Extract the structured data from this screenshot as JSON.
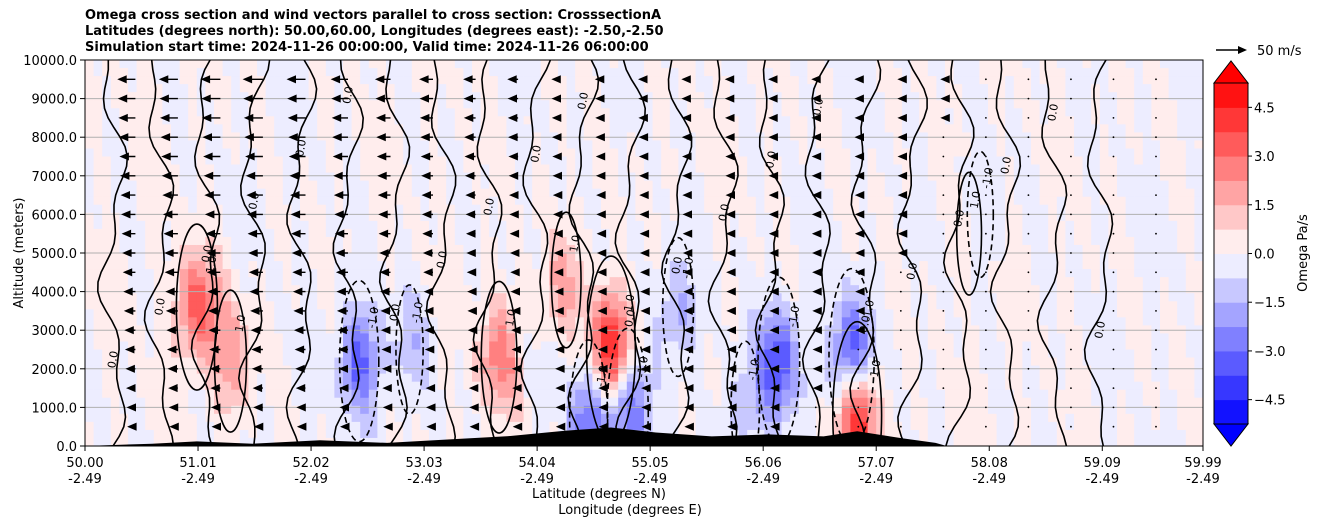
{
  "chart_data": {
    "type": "heatmap",
    "title_lines": [
      "Omega cross section and wind vectors parallel to cross section: CrosssectionA",
      "Latitudes (degrees north): 50.00,60.00, Longitudes (degrees east): -2.50,-2.50",
      "Simulation start time: 2024-11-26 00:00:00, Valid time: 2024-11-26 06:00:00"
    ],
    "xlabel_lines": [
      "Latitude (degrees N)",
      "Longitude (degrees E)"
    ],
    "ylabel": "Altitude (meters)",
    "x_range": [
      50.0,
      59.99
    ],
    "ylim": [
      0,
      10000
    ],
    "x_ticks": [
      {
        "lat": "50.00",
        "lon": "-2.49",
        "value": 50.0
      },
      {
        "lat": "51.01",
        "lon": "-2.49",
        "value": 51.01
      },
      {
        "lat": "52.02",
        "lon": "-2.49",
        "value": 52.02
      },
      {
        "lat": "53.03",
        "lon": "-2.49",
        "value": 53.03
      },
      {
        "lat": "54.04",
        "lon": "-2.49",
        "value": 54.04
      },
      {
        "lat": "55.05",
        "lon": "-2.49",
        "value": 55.05
      },
      {
        "lat": "56.06",
        "lon": "-2.49",
        "value": 56.06
      },
      {
        "lat": "57.07",
        "lon": "-2.49",
        "value": 57.07
      },
      {
        "lat": "58.08",
        "lon": "-2.49",
        "value": 58.08
      },
      {
        "lat": "59.09",
        "lon": "-2.49",
        "value": 59.09
      },
      {
        "lat": "59.99",
        "lon": "-2.49",
        "value": 59.99
      }
    ],
    "y_ticks": [
      {
        "label": "0.0",
        "value": 0
      },
      {
        "label": "1000.0",
        "value": 1000
      },
      {
        "label": "2000.0",
        "value": 2000
      },
      {
        "label": "3000.0",
        "value": 3000
      },
      {
        "label": "4000.0",
        "value": 4000
      },
      {
        "label": "5000.0",
        "value": 5000
      },
      {
        "label": "6000.0",
        "value": 6000
      },
      {
        "label": "7000.0",
        "value": 7000
      },
      {
        "label": "8000.0",
        "value": 8000
      },
      {
        "label": "9000.0",
        "value": 9000
      },
      {
        "label": "10000.0",
        "value": 10000
      }
    ],
    "grid": "horizontal",
    "colorbar": {
      "label": "Omega Pa/s",
      "range": [
        -5.25,
        5.25
      ],
      "ticks": [
        {
          "label": "4.5",
          "value": 4.5
        },
        {
          "label": "3.0",
          "value": 3.0
        },
        {
          "label": "1.5",
          "value": 1.5
        },
        {
          "label": "0.0",
          "value": 0.0
        },
        {
          "label": "−1.5",
          "value": -1.5
        },
        {
          "label": "−3.0",
          "value": -3.0
        },
        {
          "label": "−4.5",
          "value": -4.5
        }
      ],
      "colormap": "bwr",
      "extend": "both"
    },
    "quiver_key": {
      "label": "50 m/s",
      "speed": 50
    },
    "contour_label": "0.0",
    "contour_labels_plus": "1.0",
    "contour_labels_minus": "-1.0",
    "omega_features": [
      {
        "lat": 51.0,
        "alt": 3600,
        "omega": 3.5
      },
      {
        "lat": 51.3,
        "alt": 2200,
        "omega": 2.0
      },
      {
        "lat": 52.45,
        "alt": 2200,
        "omega": -3.2
      },
      {
        "lat": 52.9,
        "alt": 2500,
        "omega": -1.2
      },
      {
        "lat": 53.7,
        "alt": 2300,
        "omega": 2.6
      },
      {
        "lat": 54.3,
        "alt": 4300,
        "omega": 1.6
      },
      {
        "lat": 54.5,
        "alt": 700,
        "omega": -3.0
      },
      {
        "lat": 54.7,
        "alt": 2500,
        "omega": 4.8
      },
      {
        "lat": 54.85,
        "alt": 900,
        "omega": -3.5
      },
      {
        "lat": 55.3,
        "alt": 3600,
        "omega": -1.8
      },
      {
        "lat": 56.2,
        "alt": 2200,
        "omega": -3.6
      },
      {
        "lat": 56.85,
        "alt": 2300,
        "omega": -4.2
      },
      {
        "lat": 56.9,
        "alt": 800,
        "omega": 4.8
      },
      {
        "lat": 55.9,
        "alt": 1000,
        "omega": -1.4
      },
      {
        "lat": 58.0,
        "alt": 6000,
        "omega": -1.0
      },
      {
        "lat": 57.9,
        "alt": 5500,
        "omega": 0.8
      }
    ],
    "wind_profile": [
      {
        "lat": 50.4,
        "u_top": -35
      },
      {
        "lat": 51.0,
        "u_top": -38
      },
      {
        "lat": 51.6,
        "u_top": -40
      },
      {
        "lat": 52.2,
        "u_top": -35
      },
      {
        "lat": 52.9,
        "u_top": -28
      },
      {
        "lat": 53.6,
        "u_top": -22
      },
      {
        "lat": 54.4,
        "u_top": -15
      },
      {
        "lat": 55.2,
        "u_top": -12
      },
      {
        "lat": 56.0,
        "u_top": -8
      },
      {
        "lat": 56.8,
        "u_top": -5
      },
      {
        "lat": 57.6,
        "u_top": -3
      },
      {
        "lat": 58.5,
        "u_top": -1
      },
      {
        "lat": 59.5,
        "u_top": 0
      }
    ],
    "terrain": [
      {
        "lat": 50.0,
        "alt": 0
      },
      {
        "lat": 50.6,
        "alt": 60
      },
      {
        "lat": 51.0,
        "alt": 120
      },
      {
        "lat": 51.5,
        "alt": 60
      },
      {
        "lat": 52.1,
        "alt": 150
      },
      {
        "lat": 52.7,
        "alt": 80
      },
      {
        "lat": 53.3,
        "alt": 180
      },
      {
        "lat": 53.8,
        "alt": 260
      },
      {
        "lat": 54.3,
        "alt": 400
      },
      {
        "lat": 54.7,
        "alt": 480
      },
      {
        "lat": 55.1,
        "alt": 350
      },
      {
        "lat": 55.6,
        "alt": 250
      },
      {
        "lat": 56.1,
        "alt": 300
      },
      {
        "lat": 56.6,
        "alt": 250
      },
      {
        "lat": 56.9,
        "alt": 380
      },
      {
        "lat": 57.3,
        "alt": 200
      },
      {
        "lat": 57.6,
        "alt": 80
      },
      {
        "lat": 57.7,
        "alt": 0
      },
      {
        "lat": 59.99,
        "alt": 0
      }
    ]
  }
}
